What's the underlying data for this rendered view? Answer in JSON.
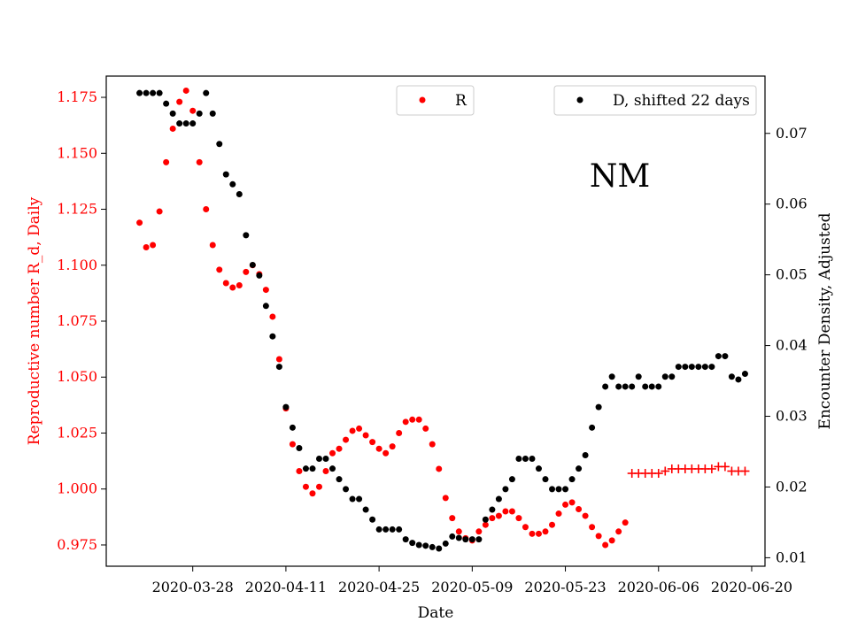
{
  "chart_data": {
    "type": "scatter",
    "annotation": "NM",
    "xlabel": "Date",
    "ylabel_left": "Reproductive number R_d, Daily",
    "ylabel_right": "Encounter Density, Adjusted",
    "x_ticks": [
      "2020-03-28",
      "2020-04-11",
      "2020-04-25",
      "2020-05-09",
      "2020-05-23",
      "2020-06-06",
      "2020-06-20"
    ],
    "y_left_ticks": [
      "0.975",
      "1.000",
      "1.025",
      "1.050",
      "1.075",
      "1.100",
      "1.125",
      "1.150",
      "1.175"
    ],
    "y_right_ticks": [
      "0.01",
      "0.02",
      "0.03",
      "0.04",
      "0.05",
      "0.06",
      "0.07"
    ],
    "xlim": [
      "2020-03-15",
      "2020-06-22"
    ],
    "ylim_left": [
      0.9655,
      1.1845
    ],
    "ylim_right": [
      0.0088,
      0.0781
    ],
    "legend": {
      "r_label": "R",
      "d_label": "D, shifted 22 days"
    },
    "colors": {
      "r": "#ff0000",
      "d": "#000000",
      "left_axis": "#ff0000"
    },
    "series": [
      {
        "name": "R",
        "axis": "left",
        "marker": "dot",
        "x": [
          "2020-03-20",
          "2020-03-21",
          "2020-03-22",
          "2020-03-23",
          "2020-03-24",
          "2020-03-25",
          "2020-03-26",
          "2020-03-27",
          "2020-03-28",
          "2020-03-29",
          "2020-03-30",
          "2020-03-31",
          "2020-04-01",
          "2020-04-02",
          "2020-04-03",
          "2020-04-04",
          "2020-04-05",
          "2020-04-06",
          "2020-04-07",
          "2020-04-08",
          "2020-04-09",
          "2020-04-10",
          "2020-04-11",
          "2020-04-12",
          "2020-04-13",
          "2020-04-14",
          "2020-04-15",
          "2020-04-16",
          "2020-04-17",
          "2020-04-18",
          "2020-04-19",
          "2020-04-20",
          "2020-04-21",
          "2020-04-22",
          "2020-04-23",
          "2020-04-24",
          "2020-04-25",
          "2020-04-26",
          "2020-04-27",
          "2020-04-28",
          "2020-04-29",
          "2020-04-30",
          "2020-05-01",
          "2020-05-02",
          "2020-05-03",
          "2020-05-04",
          "2020-05-05",
          "2020-05-06",
          "2020-05-07",
          "2020-05-08",
          "2020-05-09",
          "2020-05-10",
          "2020-05-11",
          "2020-05-12",
          "2020-05-13",
          "2020-05-14",
          "2020-05-15",
          "2020-05-16",
          "2020-05-17",
          "2020-05-18",
          "2020-05-19",
          "2020-05-20",
          "2020-05-21",
          "2020-05-22",
          "2020-05-23",
          "2020-05-24",
          "2020-05-25",
          "2020-05-26",
          "2020-05-27",
          "2020-05-28",
          "2020-05-29",
          "2020-05-30",
          "2020-05-31",
          "2020-06-01"
        ],
        "y": [
          1.119,
          1.108,
          1.109,
          1.124,
          1.146,
          1.161,
          1.173,
          1.178,
          1.169,
          1.146,
          1.125,
          1.109,
          1.098,
          1.092,
          1.09,
          1.091,
          1.097,
          1.1,
          1.096,
          1.089,
          1.077,
          1.058,
          1.036,
          1.02,
          1.008,
          1.001,
          0.998,
          1.001,
          1.008,
          1.016,
          1.018,
          1.022,
          1.026,
          1.027,
          1.024,
          1.021,
          1.018,
          1.016,
          1.019,
          1.025,
          1.03,
          1.031,
          1.031,
          1.027,
          1.02,
          1.009,
          0.996,
          0.987,
          0.981,
          0.978,
          0.977,
          0.981,
          0.984,
          0.987,
          0.988,
          0.99,
          0.99,
          0.987,
          0.983,
          0.98,
          0.98,
          0.981,
          0.984,
          0.989,
          0.993,
          0.994,
          0.991,
          0.988,
          0.983,
          0.979,
          0.975,
          0.977,
          0.981,
          0.985
        ]
      },
      {
        "name": "R",
        "axis": "left",
        "marker": "plus",
        "x": [
          "2020-06-02",
          "2020-06-03",
          "2020-06-04",
          "2020-06-05",
          "2020-06-06",
          "2020-06-07",
          "2020-06-08",
          "2020-06-09",
          "2020-06-10",
          "2020-06-11",
          "2020-06-12",
          "2020-06-13",
          "2020-06-14",
          "2020-06-15",
          "2020-06-16",
          "2020-06-17",
          "2020-06-18",
          "2020-06-19"
        ],
        "y": [
          1.007,
          1.007,
          1.007,
          1.007,
          1.007,
          1.008,
          1.009,
          1.009,
          1.009,
          1.009,
          1.009,
          1.009,
          1.009,
          1.01,
          1.01,
          1.008,
          1.008,
          1.008
        ]
      },
      {
        "name": "D, shifted 22 days",
        "axis": "right",
        "marker": "dot",
        "x": [
          "2020-03-20",
          "2020-03-21",
          "2020-03-22",
          "2020-03-23",
          "2020-03-24",
          "2020-03-25",
          "2020-03-26",
          "2020-03-27",
          "2020-03-28",
          "2020-03-29",
          "2020-03-30",
          "2020-03-31",
          "2020-04-01",
          "2020-04-02",
          "2020-04-03",
          "2020-04-04",
          "2020-04-05",
          "2020-04-06",
          "2020-04-07",
          "2020-04-08",
          "2020-04-09",
          "2020-04-10",
          "2020-04-11",
          "2020-04-12",
          "2020-04-13",
          "2020-04-14",
          "2020-04-15",
          "2020-04-16",
          "2020-04-17",
          "2020-04-18",
          "2020-04-19",
          "2020-04-20",
          "2020-04-21",
          "2020-04-22",
          "2020-04-23",
          "2020-04-24",
          "2020-04-25",
          "2020-04-26",
          "2020-04-27",
          "2020-04-28",
          "2020-04-29",
          "2020-04-30",
          "2020-05-01",
          "2020-05-02",
          "2020-05-03",
          "2020-05-04",
          "2020-05-05",
          "2020-05-06",
          "2020-05-07",
          "2020-05-08",
          "2020-05-09",
          "2020-05-10",
          "2020-05-11",
          "2020-05-12",
          "2020-05-13",
          "2020-05-14",
          "2020-05-15",
          "2020-05-16",
          "2020-05-17",
          "2020-05-18",
          "2020-05-19",
          "2020-05-20",
          "2020-05-21",
          "2020-05-22",
          "2020-05-23",
          "2020-05-24",
          "2020-05-25",
          "2020-05-26",
          "2020-05-27",
          "2020-05-28",
          "2020-05-29",
          "2020-05-30",
          "2020-05-31",
          "2020-06-01",
          "2020-06-02",
          "2020-06-03",
          "2020-06-04",
          "2020-06-05",
          "2020-06-06",
          "2020-06-07",
          "2020-06-08",
          "2020-06-09",
          "2020-06-10",
          "2020-06-11",
          "2020-06-12",
          "2020-06-13",
          "2020-06-14",
          "2020-06-15",
          "2020-06-16",
          "2020-06-17",
          "2020-06-18",
          "2020-06-19"
        ],
        "y": [
          0.0757,
          0.0757,
          0.0757,
          0.0757,
          0.0742,
          0.0728,
          0.0714,
          0.0714,
          0.0714,
          0.0728,
          0.0757,
          0.0728,
          0.0685,
          0.0642,
          0.0628,
          0.0614,
          0.0556,
          0.0514,
          0.0499,
          0.0456,
          0.0413,
          0.037,
          0.0313,
          0.0284,
          0.0255,
          0.0226,
          0.0226,
          0.024,
          0.024,
          0.0226,
          0.0211,
          0.0197,
          0.0183,
          0.0183,
          0.0168,
          0.0154,
          0.014,
          0.014,
          0.014,
          0.014,
          0.0126,
          0.0121,
          0.0118,
          0.0117,
          0.0115,
          0.0113,
          0.012,
          0.013,
          0.0128,
          0.0126,
          0.0126,
          0.0126,
          0.0154,
          0.0168,
          0.0183,
          0.0197,
          0.0211,
          0.024,
          0.024,
          0.024,
          0.0226,
          0.0211,
          0.0197,
          0.0197,
          0.0197,
          0.0211,
          0.0226,
          0.0245,
          0.0284,
          0.0313,
          0.0342,
          0.0356,
          0.0342,
          0.0342,
          0.0342,
          0.0356,
          0.0342,
          0.0342,
          0.0342,
          0.0356,
          0.0356,
          0.037,
          0.037,
          0.037,
          0.037,
          0.037,
          0.037,
          0.0385,
          0.0385,
          0.0356,
          0.0352,
          0.036
        ]
      }
    ]
  }
}
